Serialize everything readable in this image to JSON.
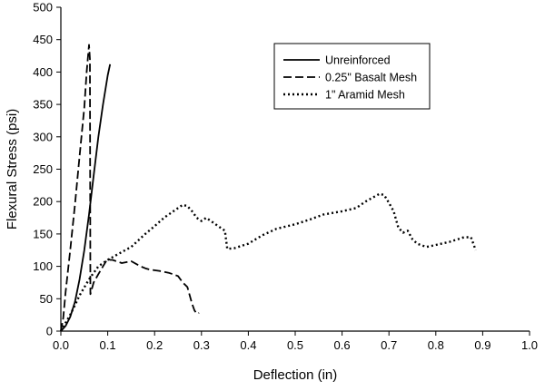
{
  "chart_data": {
    "type": "line",
    "xlabel": "Deflection (in)",
    "ylabel": "Flexural Stress (psi)",
    "xlim": [
      0,
      1.0
    ],
    "ylim": [
      0,
      500
    ],
    "x_ticks": [
      "0.0",
      "0.1",
      "0.2",
      "0.3",
      "0.4",
      "0.5",
      "0.6",
      "0.7",
      "0.8",
      "0.9",
      "1.0"
    ],
    "y_ticks": [
      "0",
      "50",
      "100",
      "150",
      "200",
      "250",
      "300",
      "350",
      "400",
      "450",
      "500"
    ],
    "grid": false,
    "legend_position": "top-right",
    "series": [
      {
        "name": "Unreinforced",
        "style": "solid",
        "color": "#000000",
        "points": [
          [
            0,
            0
          ],
          [
            0.01,
            8
          ],
          [
            0.02,
            22
          ],
          [
            0.03,
            45
          ],
          [
            0.04,
            80
          ],
          [
            0.05,
            125
          ],
          [
            0.06,
            180
          ],
          [
            0.07,
            240
          ],
          [
            0.08,
            300
          ],
          [
            0.09,
            350
          ],
          [
            0.1,
            395
          ],
          [
            0.105,
            412
          ]
        ]
      },
      {
        "name": "0.25\" Basalt Mesh",
        "style": "dashed",
        "color": "#000000",
        "points": [
          [
            0,
            0
          ],
          [
            0.005,
            20
          ],
          [
            0.01,
            60
          ],
          [
            0.02,
            125
          ],
          [
            0.03,
            195
          ],
          [
            0.04,
            270
          ],
          [
            0.05,
            345
          ],
          [
            0.055,
            400
          ],
          [
            0.06,
            442
          ],
          [
            0.062,
            420
          ],
          [
            0.063,
            57
          ],
          [
            0.065,
            62
          ],
          [
            0.07,
            75
          ],
          [
            0.08,
            88
          ],
          [
            0.09,
            100
          ],
          [
            0.1,
            112
          ],
          [
            0.105,
            110
          ],
          [
            0.11,
            110
          ],
          [
            0.13,
            105
          ],
          [
            0.15,
            108
          ],
          [
            0.17,
            100
          ],
          [
            0.18,
            97
          ],
          [
            0.19,
            95
          ],
          [
            0.21,
            93
          ],
          [
            0.23,
            90
          ],
          [
            0.25,
            85
          ],
          [
            0.26,
            75
          ],
          [
            0.27,
            68
          ],
          [
            0.275,
            55
          ],
          [
            0.28,
            42
          ],
          [
            0.285,
            32
          ],
          [
            0.29,
            27
          ],
          [
            0.295,
            28
          ]
        ]
      },
      {
        "name": "1\" Aramid Mesh",
        "style": "dotted",
        "color": "#000000",
        "points": [
          [
            0,
            0
          ],
          [
            0.02,
            25
          ],
          [
            0.04,
            55
          ],
          [
            0.06,
            80
          ],
          [
            0.08,
            100
          ],
          [
            0.1,
            110
          ],
          [
            0.12,
            118
          ],
          [
            0.15,
            130
          ],
          [
            0.18,
            150
          ],
          [
            0.2,
            162
          ],
          [
            0.22,
            175
          ],
          [
            0.24,
            185
          ],
          [
            0.26,
            195
          ],
          [
            0.27,
            193
          ],
          [
            0.28,
            185
          ],
          [
            0.29,
            175
          ],
          [
            0.3,
            170
          ],
          [
            0.31,
            175
          ],
          [
            0.32,
            170
          ],
          [
            0.33,
            165
          ],
          [
            0.34,
            160
          ],
          [
            0.35,
            155
          ],
          [
            0.355,
            127
          ],
          [
            0.37,
            128
          ],
          [
            0.4,
            135
          ],
          [
            0.43,
            148
          ],
          [
            0.46,
            158
          ],
          [
            0.5,
            165
          ],
          [
            0.53,
            172
          ],
          [
            0.56,
            180
          ],
          [
            0.6,
            185
          ],
          [
            0.63,
            190
          ],
          [
            0.65,
            200
          ],
          [
            0.68,
            212
          ],
          [
            0.69,
            210
          ],
          [
            0.7,
            198
          ],
          [
            0.71,
            185
          ],
          [
            0.72,
            160
          ],
          [
            0.73,
            152
          ],
          [
            0.74,
            155
          ],
          [
            0.75,
            142
          ],
          [
            0.76,
            135
          ],
          [
            0.78,
            130
          ],
          [
            0.8,
            133
          ],
          [
            0.83,
            138
          ],
          [
            0.86,
            145
          ],
          [
            0.875,
            145
          ],
          [
            0.88,
            135
          ],
          [
            0.885,
            125
          ]
        ]
      }
    ]
  }
}
